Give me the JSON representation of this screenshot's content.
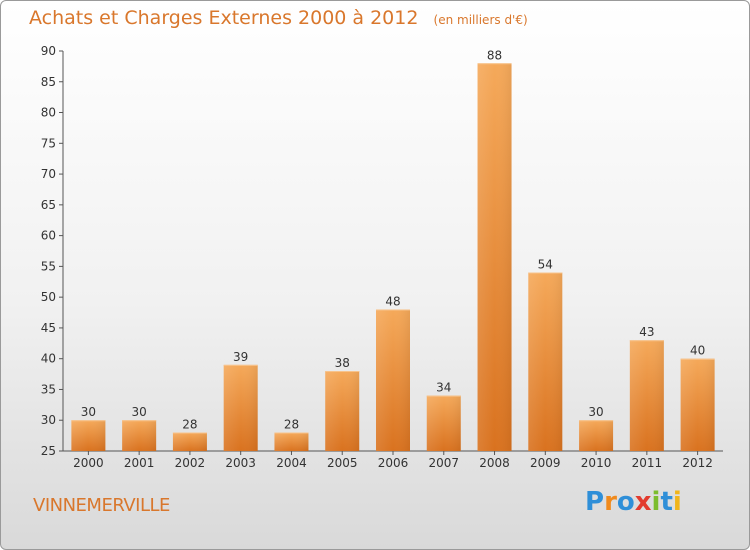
{
  "header": {
    "title": "Achats et Charges Externes 2000 à 2012",
    "unit": "(en milliers d'€)"
  },
  "commune": "VINNEMERVILLE",
  "brand": {
    "name": "Proxiti",
    "letters": [
      {
        "char": "P",
        "color": "#2f8fd8"
      },
      {
        "char": "r",
        "color": "#f08a1c"
      },
      {
        "char": "o",
        "color": "#2f8fd8"
      },
      {
        "char": "x",
        "color": "#e23b2e"
      },
      {
        "char": "i",
        "color": "#7cbd2e"
      },
      {
        "char": "t",
        "color": "#2f8fd8"
      },
      {
        "char": "i",
        "color": "#f0b51c"
      }
    ]
  },
  "colors": {
    "bar_top": "#f5a95a",
    "bar_bottom": "#d9721f",
    "title": "#d9772c"
  },
  "chart_data": {
    "type": "bar",
    "title": "Achats et Charges Externes 2000 à 2012",
    "subtitle": "(en milliers d'€)",
    "categories": [
      "2000",
      "2001",
      "2002",
      "2003",
      "2004",
      "2005",
      "2006",
      "2007",
      "2008",
      "2009",
      "2010",
      "2011",
      "2012"
    ],
    "values": [
      30,
      30,
      28,
      39,
      28,
      38,
      48,
      34,
      88,
      54,
      30,
      43,
      40
    ],
    "ylim": [
      25,
      90
    ],
    "yticks": [
      25,
      30,
      35,
      40,
      45,
      50,
      55,
      60,
      65,
      70,
      75,
      80,
      85,
      90
    ],
    "grid": false,
    "data_labels": true
  }
}
